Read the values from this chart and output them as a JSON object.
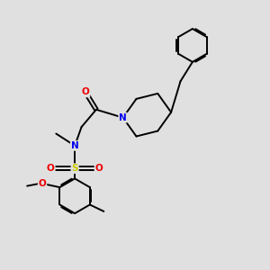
{
  "bg_color": "#e0e0e0",
  "bond_color": "#000000",
  "bond_width": 1.4,
  "atom_colors": {
    "N": "#0000ee",
    "O": "#ee0000",
    "S": "#cccc00",
    "C": "#000000"
  },
  "font_size": 7.5,
  "fig_size": [
    3.0,
    3.0
  ],
  "dpi": 100
}
